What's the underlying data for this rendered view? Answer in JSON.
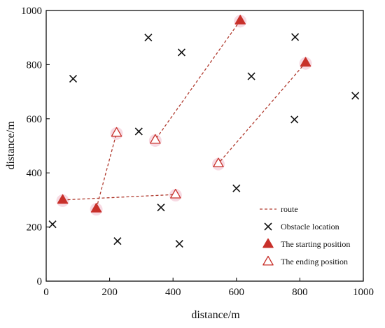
{
  "chart_data": {
    "type": "scatter",
    "title": "",
    "xlabel": "distance/m",
    "ylabel": "distance/m",
    "xlim": [
      0,
      1000
    ],
    "ylim": [
      0,
      1000
    ],
    "xticks": [
      0,
      200,
      400,
      600,
      800,
      1000
    ],
    "yticks": [
      0,
      200,
      400,
      600,
      800,
      1000
    ],
    "grid": false,
    "legend_position": "bottom-right",
    "series": [
      {
        "name": "Obstacle location",
        "marker": "x",
        "color": "#111111",
        "points": [
          [
            20,
            210
          ],
          [
            85,
            748
          ],
          [
            225,
            148
          ],
          [
            292,
            553
          ],
          [
            322,
            900
          ],
          [
            362,
            272
          ],
          [
            420,
            138
          ],
          [
            427,
            845
          ],
          [
            600,
            343
          ],
          [
            647,
            757
          ],
          [
            783,
            597
          ],
          [
            785,
            902
          ],
          [
            975,
            685
          ]
        ]
      },
      {
        "name": "The starting position",
        "marker": "filled-triangle",
        "color": "#c8302a",
        "points": [
          [
            52,
            300
          ],
          [
            158,
            268
          ],
          [
            612,
            963
          ],
          [
            818,
            807
          ]
        ]
      },
      {
        "name": "The ending position",
        "marker": "open-triangle",
        "color": "#c8302a",
        "points": [
          [
            222,
            548
          ],
          [
            344,
            522
          ],
          [
            408,
            320
          ],
          [
            543,
            435
          ]
        ]
      }
    ],
    "routes": {
      "name": "route",
      "color": "#b03a2e",
      "lines": [
        [
          [
            52,
            300
          ],
          [
            408,
            320
          ]
        ],
        [
          [
            158,
            268
          ],
          [
            222,
            548
          ]
        ],
        [
          [
            612,
            963
          ],
          [
            344,
            522
          ]
        ],
        [
          [
            818,
            807
          ],
          [
            543,
            435
          ]
        ]
      ]
    },
    "legend": [
      {
        "label": "route",
        "kind": "line"
      },
      {
        "label": "Obstacle location",
        "kind": "x"
      },
      {
        "label": "The starting position",
        "kind": "filled-triangle"
      },
      {
        "label": "The ending position",
        "kind": "open-triangle"
      }
    ]
  }
}
